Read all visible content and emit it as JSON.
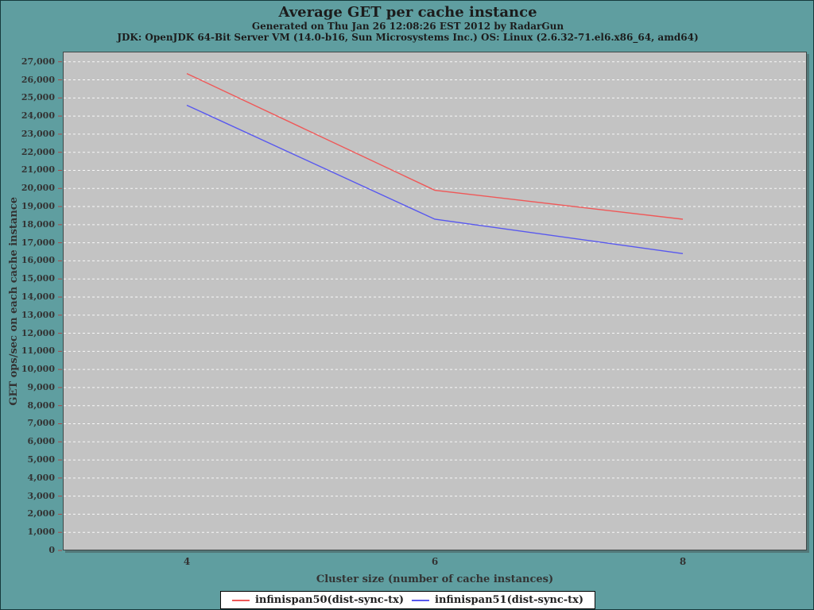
{
  "title": "Average GET per cache instance",
  "subtitle1": "Generated on Thu Jan 26 12:08:26 EST 2012 by RadarGun",
  "subtitle2": "JDK: OpenJDK 64-Bit Server VM (14.0-b16, Sun Microsystems Inc.) OS: Linux (2.6.32-71.el6.x86_64, amd64)",
  "chart_data": {
    "type": "line",
    "x": [
      4,
      6,
      8
    ],
    "xticks": [
      4,
      6,
      8
    ],
    "series": [
      {
        "name": "infinispan50(dist-sync-tx)",
        "color": "#ef5858",
        "values": [
          26350,
          19900,
          18300
        ]
      },
      {
        "name": "infinispan51(dist-sync-tx)",
        "color": "#5858ef",
        "values": [
          24600,
          18300,
          16400
        ]
      }
    ],
    "xlabel": "Cluster size (number of cache instances)",
    "ylabel": "GET ops/sec on each cache instance",
    "xlim": [
      3,
      9
    ],
    "ylim": [
      0,
      27560
    ],
    "ytick_step": 1000,
    "ytick_max": 27000,
    "grid": "horizontal-dashed",
    "legend_position": "bottom-center"
  },
  "colors": {
    "background": "#5f9ea0",
    "plot_background": "#c3c3c3",
    "grid": "#f8f8f8",
    "tick_mark": "#aa4848",
    "plot_border": "#3f4747",
    "legend_background": "#ffffff",
    "legend_border": "#000000",
    "text": "#2a2a2a"
  }
}
